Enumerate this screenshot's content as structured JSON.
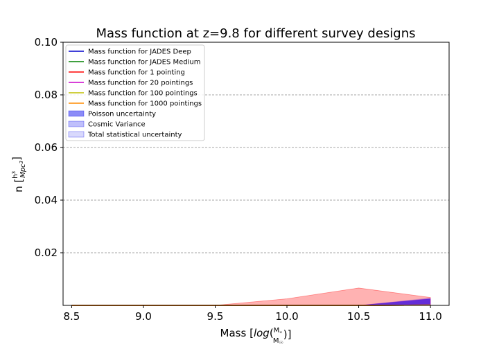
{
  "chart_data": {
    "type": "area",
    "title": "Mass function at z=9.8 for different survey designs",
    "xlabel": "Mass [log(M*/M☉)]",
    "ylabel": "n [h³/Mpc³]",
    "xlim": [
      8.44,
      11.13
    ],
    "ylim": [
      0.0,
      0.1
    ],
    "x_ticks": [
      "8.5",
      "9.0",
      "9.5",
      "10.0",
      "10.5",
      "11.0"
    ],
    "y_ticks": [
      "0.02",
      "0.04",
      "0.06",
      "0.08",
      "0.10"
    ],
    "grid": "y-dashed",
    "legend_position": "top-left",
    "x": [
      8.5,
      9.0,
      9.5,
      10.0,
      10.5,
      11.0
    ],
    "series": [
      {
        "name": "Mass function for JADES Deep",
        "color": "#0000cc",
        "values": [
          0,
          0,
          0,
          0,
          0,
          0.0001
        ]
      },
      {
        "name": "Mass function for JADES Medium",
        "color": "#008000",
        "values": [
          0,
          0,
          0,
          0,
          0,
          0.0001
        ]
      },
      {
        "name": "Mass function for 1 pointing",
        "color": "#ff0000",
        "values": [
          0,
          0,
          0,
          0,
          0,
          0.0001
        ]
      },
      {
        "name": "Mass function for 20 pointings",
        "color": "#cc00cc",
        "values": [
          0,
          0,
          0,
          0,
          0,
          0.0001
        ]
      },
      {
        "name": "Mass function for 100 pointings",
        "color": "#bfbf00",
        "values": [
          0,
          0,
          0,
          0,
          0,
          0.0001
        ]
      },
      {
        "name": "Mass function for 1000 pointings",
        "color": "#ff8c00",
        "values": [
          0,
          0,
          0,
          0,
          0,
          0.0001
        ]
      }
    ],
    "bands": [
      {
        "name": "Poisson uncertainty",
        "color": "#0000ee",
        "opacity": 0.4,
        "lower": [
          0,
          0,
          0,
          0,
          0,
          0.0001
        ],
        "upper": [
          0,
          0,
          0,
          0,
          0,
          0.0025
        ]
      },
      {
        "name": "Cosmic Variance",
        "color": "#0000ee",
        "opacity": 0.2,
        "lower": [
          0,
          0,
          0,
          0,
          0,
          0.0001
        ],
        "upper": [
          0,
          0,
          0,
          0,
          0,
          0.0028
        ]
      },
      {
        "name": "Total statistical uncertainty",
        "color": "#0000ee",
        "opacity": 0.1,
        "lower": [
          0,
          0,
          0,
          0,
          0,
          0.0001
        ],
        "upper": [
          0,
          0,
          0,
          0,
          0,
          0.003
        ]
      }
    ],
    "extra_fills": [
      {
        "color": "#ff0000",
        "opacity": 0.3,
        "lower": [
          0,
          0,
          0,
          0,
          0,
          0.0001
        ],
        "upper": [
          0,
          0,
          0,
          0.0025,
          0.0066,
          0.003
        ]
      },
      {
        "color": "#cc00cc",
        "opacity": 0.4,
        "lower": [
          0,
          0,
          0,
          0,
          0,
          0.0001
        ],
        "upper": [
          0,
          0,
          0,
          0,
          0,
          0.0025
        ]
      }
    ]
  }
}
